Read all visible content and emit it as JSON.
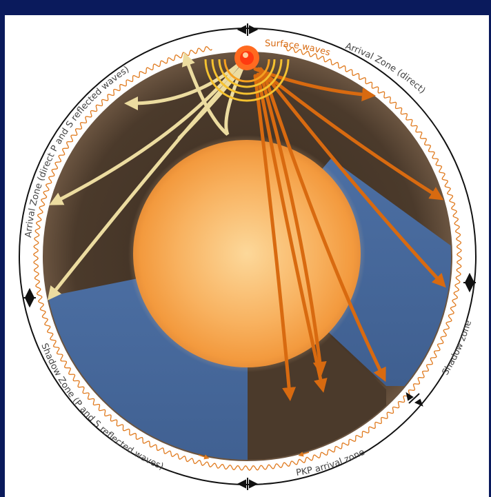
{
  "labels": {
    "surface_waves": "Surface waves",
    "arrival_direct": "Arrival Zone (direct)",
    "arrival_direct_ps": "Arrival Zone (direct P and S reflected waves)",
    "shadow_zone_ps": "Shadow Zone (P and S reflected waves)",
    "shadow_zone": "Shadow zone",
    "pkp_arrival": "PKP arrival zone"
  },
  "colors": {
    "background": "#0a1a5c",
    "panel": "#ffffff",
    "mantle": "#4a3a2c",
    "shadow": "#4a6b9a",
    "core": "#f7a040",
    "reflected_waves": "#ecdca0",
    "direct_waves": "#d86a10",
    "surface_waves": "#e07a1e",
    "ring": "#111111",
    "epicenter": "#ff4a10"
  },
  "icons": [
    "zone-boundary-marker-icon",
    "epicenter-icon",
    "wave-arrow-icon"
  ]
}
